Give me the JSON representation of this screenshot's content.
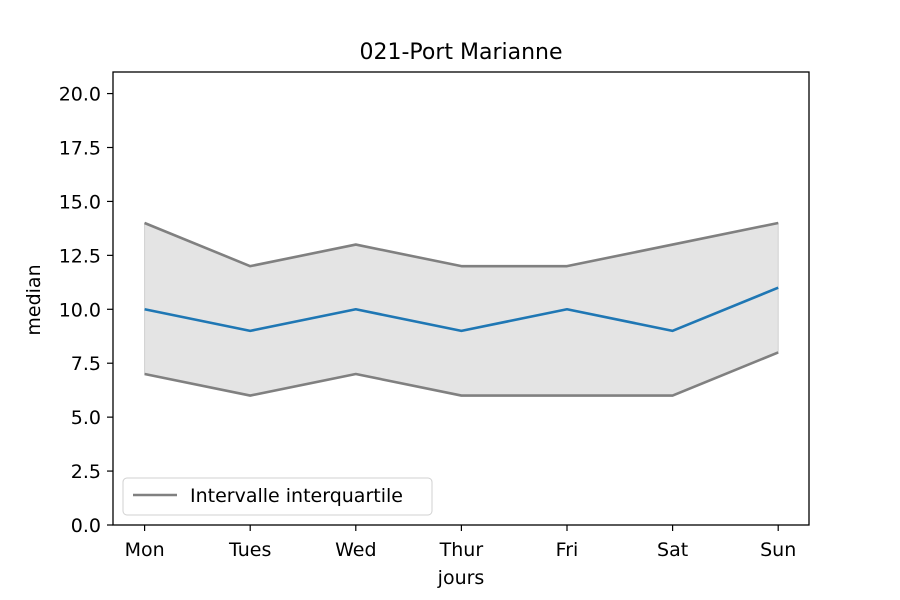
{
  "chart_data": {
    "type": "line",
    "title": "021-Port Marianne",
    "xlabel": "jours",
    "ylabel": "median",
    "categories": [
      "Mon",
      "Tues",
      "Wed",
      "Thur",
      "Fri",
      "Sat",
      "Sun"
    ],
    "ylim": [
      0,
      21
    ],
    "yticks": [
      0.0,
      2.5,
      5.0,
      7.5,
      10.0,
      12.5,
      15.0,
      17.5,
      20.0
    ],
    "ytick_labels": [
      "0.0",
      "2.5",
      "5.0",
      "7.5",
      "10.0",
      "12.5",
      "15.0",
      "17.5",
      "20.0"
    ],
    "series": [
      {
        "values": [
          10,
          9,
          10,
          9,
          10,
          9,
          11
        ],
        "color": "#1f77b4"
      },
      {
        "values": [
          7,
          6,
          7,
          6,
          6,
          6,
          8
        ],
        "color": "#808080"
      },
      {
        "values": [
          14,
          12,
          13,
          12,
          12,
          13,
          14
        ],
        "color": "#808080"
      }
    ],
    "band": {
      "lower_series": 1,
      "upper_series": 2,
      "fill": "#e4e4e4"
    },
    "legend": {
      "placement": "lower-left",
      "entries": [
        {
          "label": "Intervalle interquartile",
          "color": "#808080"
        }
      ]
    },
    "grid": false
  }
}
